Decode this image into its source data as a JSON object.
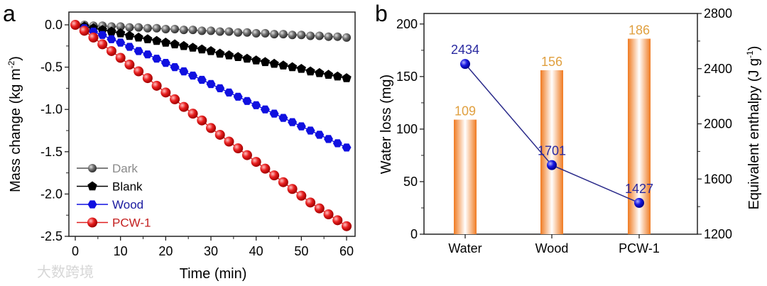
{
  "watermark": "大数跨境",
  "chart_data": [
    {
      "panel": "a",
      "type": "line",
      "xlabel": "Time (min)",
      "ylabel": "Mass change (kg m",
      "ylabel_sup": "-2",
      "ylabel_end": ")",
      "xlim": [
        -2,
        63
      ],
      "ylim": [
        -2.5,
        0.15
      ],
      "xticks": [
        0,
        10,
        20,
        30,
        40,
        50,
        60
      ],
      "xtick_labels": [
        "0",
        "10",
        "20",
        "30",
        "40",
        "50",
        "60"
      ],
      "yticks": [
        0,
        -0.5,
        -1,
        -1.5,
        -2,
        -2.5
      ],
      "ytick_labels": [
        "0.0",
        "-0.5",
        "-1.0",
        "-1.5",
        "-2.0",
        "-2.5"
      ],
      "legend_position": "bottom-left",
      "x": [
        0,
        2,
        4,
        6,
        8,
        10,
        12,
        14,
        16,
        18,
        20,
        22,
        24,
        26,
        28,
        30,
        32,
        34,
        36,
        38,
        40,
        42,
        44,
        46,
        48,
        50,
        52,
        54,
        56,
        58,
        60
      ],
      "series": [
        {
          "name": "Dark",
          "color": "#555555",
          "label_color": "#8a8a8a",
          "marker": "sphere",
          "values": [
            0,
            0,
            -0.01,
            -0.01,
            -0.02,
            -0.02,
            -0.03,
            -0.03,
            -0.04,
            -0.04,
            -0.05,
            -0.05,
            -0.06,
            -0.06,
            -0.07,
            -0.07,
            -0.08,
            -0.08,
            -0.09,
            -0.09,
            -0.1,
            -0.1,
            -0.11,
            -0.11,
            -0.12,
            -0.12,
            -0.13,
            -0.13,
            -0.14,
            -0.14,
            -0.15
          ]
        },
        {
          "name": "Blank",
          "color": "#000000",
          "label_color": "#000000",
          "marker": "pentagon",
          "values": [
            0,
            -0.02,
            -0.04,
            -0.06,
            -0.08,
            -0.1,
            -0.13,
            -0.15,
            -0.17,
            -0.19,
            -0.21,
            -0.23,
            -0.25,
            -0.27,
            -0.29,
            -0.31,
            -0.34,
            -0.36,
            -0.38,
            -0.4,
            -0.42,
            -0.44,
            -0.46,
            -0.48,
            -0.5,
            -0.52,
            -0.55,
            -0.57,
            -0.59,
            -0.61,
            -0.63
          ]
        },
        {
          "name": "Wood",
          "color": "#1010e0",
          "label_color": "#1a1aa0",
          "marker": "hexagon",
          "values": [
            0,
            -0.04,
            -0.08,
            -0.12,
            -0.17,
            -0.21,
            -0.26,
            -0.31,
            -0.35,
            -0.4,
            -0.45,
            -0.5,
            -0.55,
            -0.6,
            -0.65,
            -0.7,
            -0.75,
            -0.8,
            -0.85,
            -0.9,
            -0.95,
            -1.0,
            -1.05,
            -1.1,
            -1.15,
            -1.2,
            -1.25,
            -1.3,
            -1.35,
            -1.4,
            -1.45
          ]
        },
        {
          "name": "PCW-1",
          "color": "#e02020",
          "label_color": "#c42020",
          "marker": "sphere",
          "values": [
            0,
            -0.07,
            -0.15,
            -0.23,
            -0.31,
            -0.39,
            -0.47,
            -0.55,
            -0.63,
            -0.72,
            -0.8,
            -0.88,
            -0.97,
            -1.05,
            -1.13,
            -1.22,
            -1.3,
            -1.38,
            -1.46,
            -1.54,
            -1.62,
            -1.7,
            -1.78,
            -1.86,
            -1.94,
            -2.02,
            -2.1,
            -2.17,
            -2.24,
            -2.31,
            -2.38
          ]
        }
      ]
    },
    {
      "panel": "b",
      "type": "bar",
      "categories": [
        "Water",
        "Wood",
        "PCW-1"
      ],
      "ylabel": "Water loss (mg)",
      "ylim": [
        0,
        210
      ],
      "yticks": [
        0,
        50,
        100,
        150,
        200
      ],
      "ytick_labels": [
        "0",
        "50",
        "100",
        "150",
        "200"
      ],
      "y2label": "Equivalent enthalpy (J g",
      "y2label_sup": "-1",
      "y2label_end": ")",
      "y2lim": [
        1200,
        2800
      ],
      "y2ticks": [
        1200,
        1600,
        2000,
        2400,
        2800
      ],
      "y2tick_labels": [
        "1200",
        "1600",
        "2000",
        "2400",
        "2800"
      ],
      "series": [
        {
          "name": "Water loss",
          "type": "bar",
          "axis": "left",
          "color": "#f08a30",
          "label_color": "#e0a040",
          "values": [
            109,
            156,
            186
          ],
          "labels": [
            "109",
            "156",
            "186"
          ]
        },
        {
          "name": "Equivalent enthalpy",
          "type": "line",
          "axis": "right",
          "color": "#2a2a8a",
          "marker_color": "#1515d0",
          "label_color": "#2a2aa0",
          "values": [
            2434,
            1701,
            1427
          ],
          "labels": [
            "2434",
            "1701",
            "1427"
          ]
        }
      ]
    }
  ]
}
